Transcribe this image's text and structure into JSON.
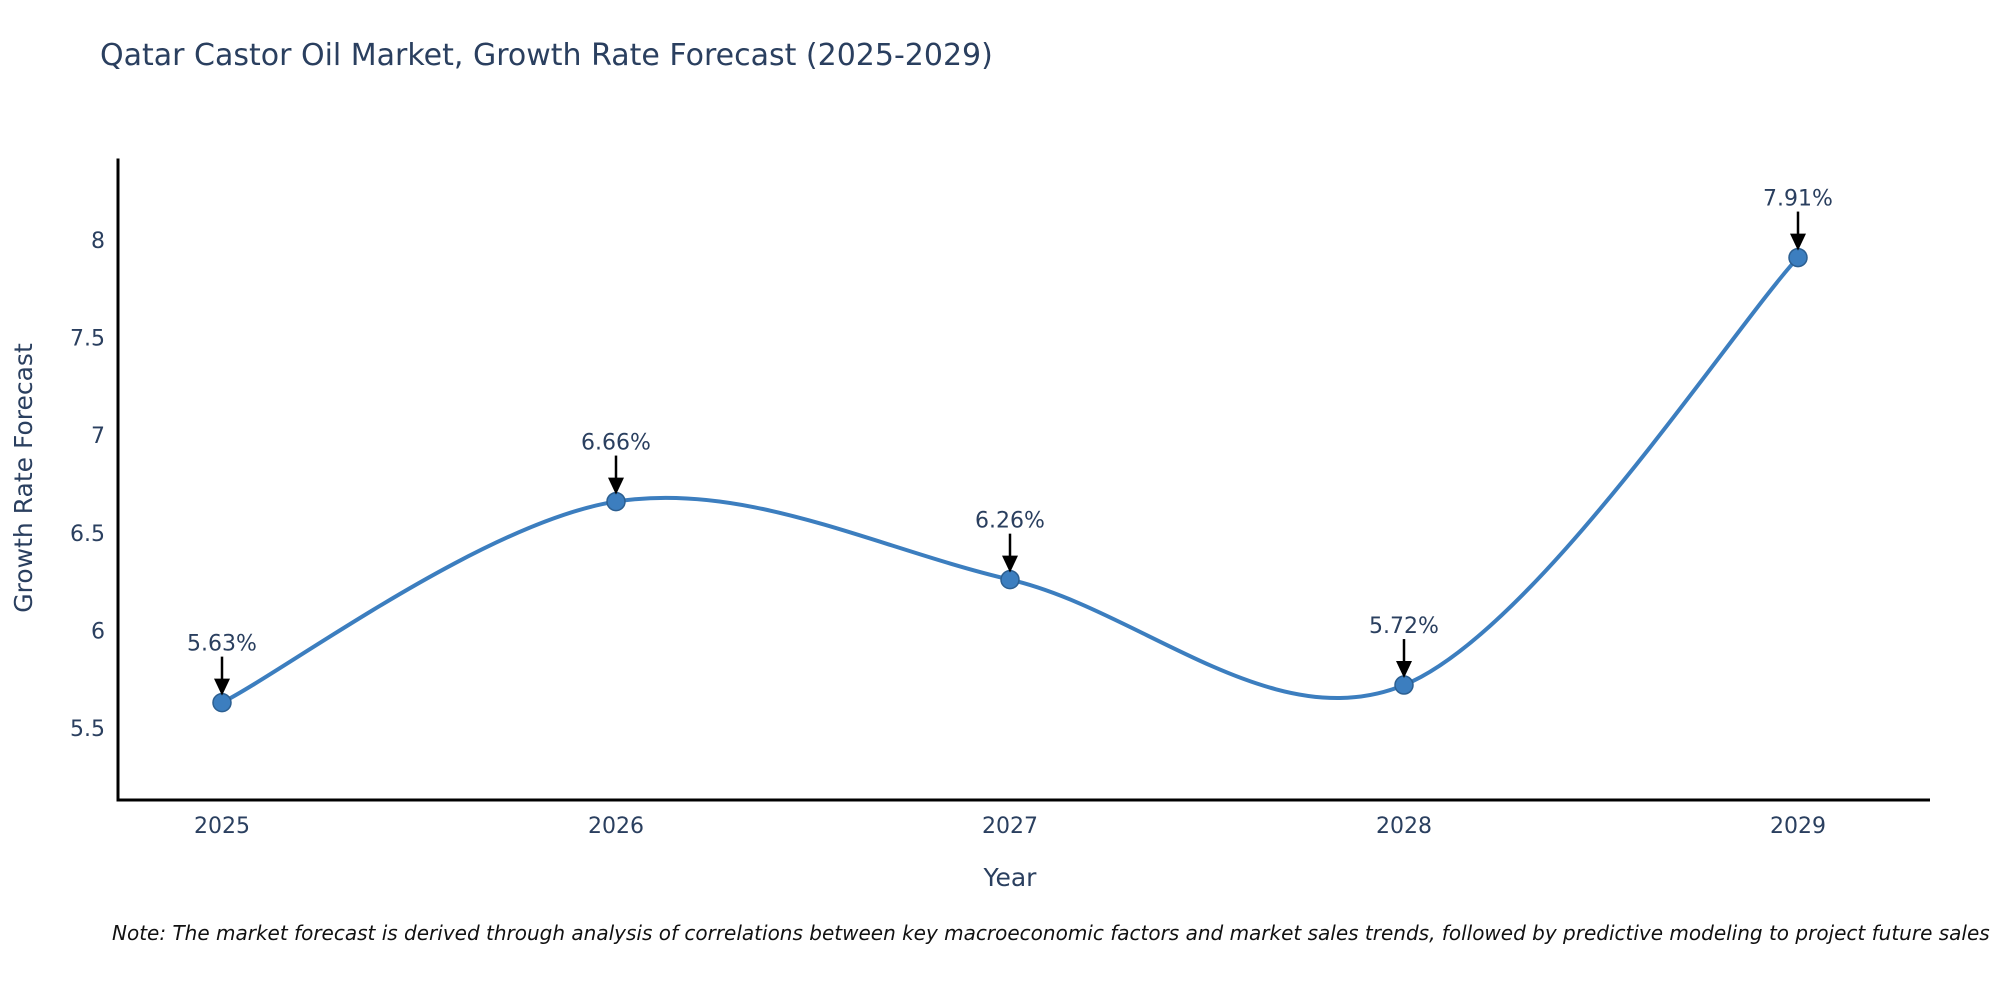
{
  "chart_data": {
    "type": "line",
    "title": "Qatar Castor Oil Market, Growth Rate Forecast (2025-2029)",
    "xlabel": "Year",
    "ylabel": "Growth Rate Forecast",
    "x": [
      2025,
      2026,
      2027,
      2028,
      2029
    ],
    "y": [
      5.63,
      6.66,
      6.26,
      5.72,
      7.91
    ],
    "point_labels": [
      "5.63%",
      "6.66%",
      "6.26%",
      "5.72%",
      "7.91%"
    ],
    "x_tick_labels": [
      "2025",
      "2026",
      "2027",
      "2028",
      "2029"
    ],
    "y_ticks": [
      5.5,
      6,
      6.5,
      7,
      7.5,
      8
    ],
    "y_tick_labels": [
      "5.5",
      "6",
      "6.5",
      "7",
      "7.5",
      "8"
    ],
    "ylim": [
      5.13,
      8.42
    ],
    "line_shape": "spline",
    "grid": false,
    "legend": false,
    "line_color": "#3c7ebf",
    "marker_color": "#3c7ebf",
    "marker_edge_color": "#2c5f91",
    "axis_color": "#000000",
    "text_color": "#2a3f5f",
    "arrow_color": "#000000",
    "note": "Note: The market forecast is derived through analysis of correlations between key macroeconomic factors and market sales trends, followed by predictive modeling to project future sales"
  }
}
